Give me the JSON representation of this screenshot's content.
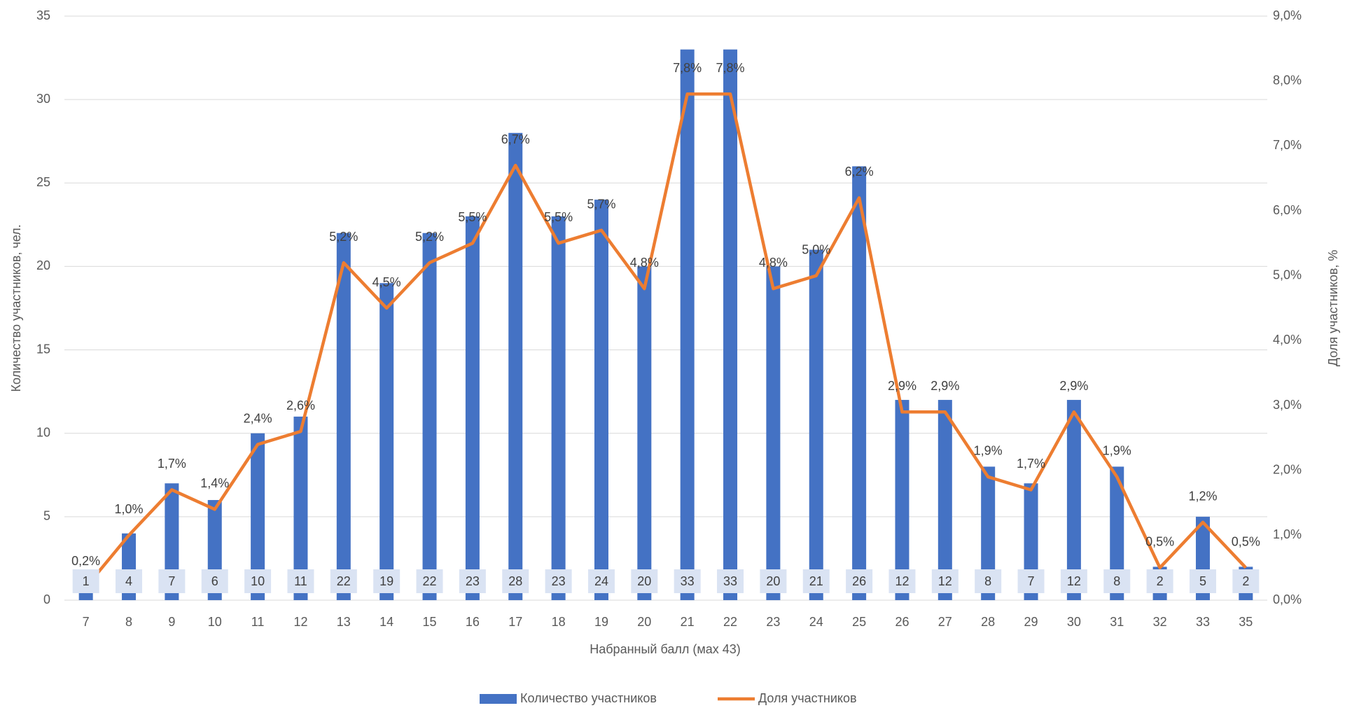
{
  "chart_data": {
    "type": "bar_line",
    "x_label": "Набранный балл (мах 43)",
    "y_label": "Количество участников, чел.",
    "y2_label": "Доля участников, %",
    "categories": [
      "7",
      "8",
      "9",
      "10",
      "11",
      "12",
      "13",
      "14",
      "15",
      "16",
      "17",
      "18",
      "19",
      "20",
      "21",
      "22",
      "23",
      "24",
      "25",
      "26",
      "27",
      "28",
      "29",
      "30",
      "31",
      "32",
      "33",
      "35"
    ],
    "series": [
      {
        "name": "Количество участников",
        "color": "#4472c4",
        "type": "bar",
        "values": [
          1,
          4,
          7,
          6,
          10,
          11,
          22,
          19,
          22,
          23,
          28,
          23,
          24,
          20,
          33,
          33,
          20,
          21,
          26,
          12,
          12,
          8,
          7,
          12,
          8,
          2,
          5,
          2
        ]
      },
      {
        "name": "Доля участников",
        "color": "#ed7d31",
        "type": "line",
        "axis": "y2",
        "values": [
          0.2,
          1.0,
          1.7,
          1.4,
          2.4,
          2.6,
          5.2,
          4.5,
          5.2,
          5.5,
          6.7,
          5.5,
          5.7,
          4.8,
          7.8,
          7.8,
          4.8,
          5.0,
          6.2,
          2.9,
          2.9,
          1.9,
          1.7,
          2.9,
          1.9,
          0.5,
          1.2,
          0.5
        ],
        "value_labels": [
          "0,2%",
          "1,0%",
          "1,7%",
          "1,4%",
          "2,4%",
          "2,6%",
          "5,2%",
          "4,5%",
          "5,2%",
          "5,5%",
          "6,7%",
          "5,5%",
          "5,7%",
          "4,8%",
          "7,8%",
          "7,8%",
          "4,8%",
          "5,0%",
          "6,2%",
          "2,9%",
          "2,9%",
          "1,9%",
          "1,7%",
          "2,9%",
          "1,9%",
          "0,5%",
          "1,2%",
          "0,5%"
        ]
      }
    ],
    "ylim": [
      0,
      35
    ],
    "yticks": [
      0,
      5,
      10,
      15,
      20,
      25,
      30,
      35
    ],
    "y2lim": [
      0,
      9
    ],
    "y2ticks": [
      {
        "value": 0,
        "label": "0,0%"
      },
      {
        "value": 1,
        "label": "1,0%"
      },
      {
        "value": 2,
        "label": "2,0%"
      },
      {
        "value": 3,
        "label": "3,0%"
      },
      {
        "value": 4,
        "label": "4,0%"
      },
      {
        "value": 5,
        "label": "5,0%"
      },
      {
        "value": 6,
        "label": "6,0%"
      },
      {
        "value": 7,
        "label": "7,0%"
      },
      {
        "value": 8,
        "label": "8,0%"
      },
      {
        "value": 9,
        "label": "9,0%"
      }
    ],
    "grid": true,
    "legend": "bottom"
  }
}
